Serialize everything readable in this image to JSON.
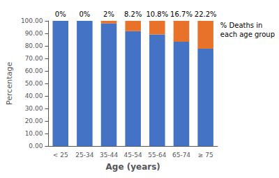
{
  "chart_data": {
    "type": "bar",
    "stacked": true,
    "categories": [
      "< 25",
      "25-34",
      "35-44",
      "45-54",
      "55-64",
      "65-74",
      "≥ 75"
    ],
    "series": [
      {
        "color": "#4472C4",
        "values": [
          100,
          100,
          98,
          91.8,
          89.2,
          83.3,
          77.8
        ]
      },
      {
        "color": "#E8722A",
        "values": [
          0,
          0,
          2,
          8.2,
          10.8,
          16.7,
          22.2
        ],
        "value_labels": [
          "0%",
          "0%",
          "2%",
          "8.2%",
          "10.8%",
          "16.7%",
          "22.2%"
        ]
      }
    ],
    "data_labels": true,
    "xlabel": "Age (years)",
    "ylabel": "Percentage",
    "annotation": "% Deaths in\neach age group",
    "ylim": [
      0,
      100
    ],
    "yticks": [
      {
        "value": 0,
        "label": "0.00"
      },
      {
        "value": 10,
        "label": "10.00"
      },
      {
        "value": 20,
        "label": "20.00"
      },
      {
        "value": 30,
        "label": "30.00"
      },
      {
        "value": 40,
        "label": "40.00"
      },
      {
        "value": 50,
        "label": "50.00"
      },
      {
        "value": 60,
        "label": "60.00"
      },
      {
        "value": 70,
        "label": "70.00"
      },
      {
        "value": 80,
        "label": "80.00"
      },
      {
        "value": 90,
        "label": "90.00"
      },
      {
        "value": 100,
        "label": "100.00"
      }
    ],
    "grid": false
  }
}
